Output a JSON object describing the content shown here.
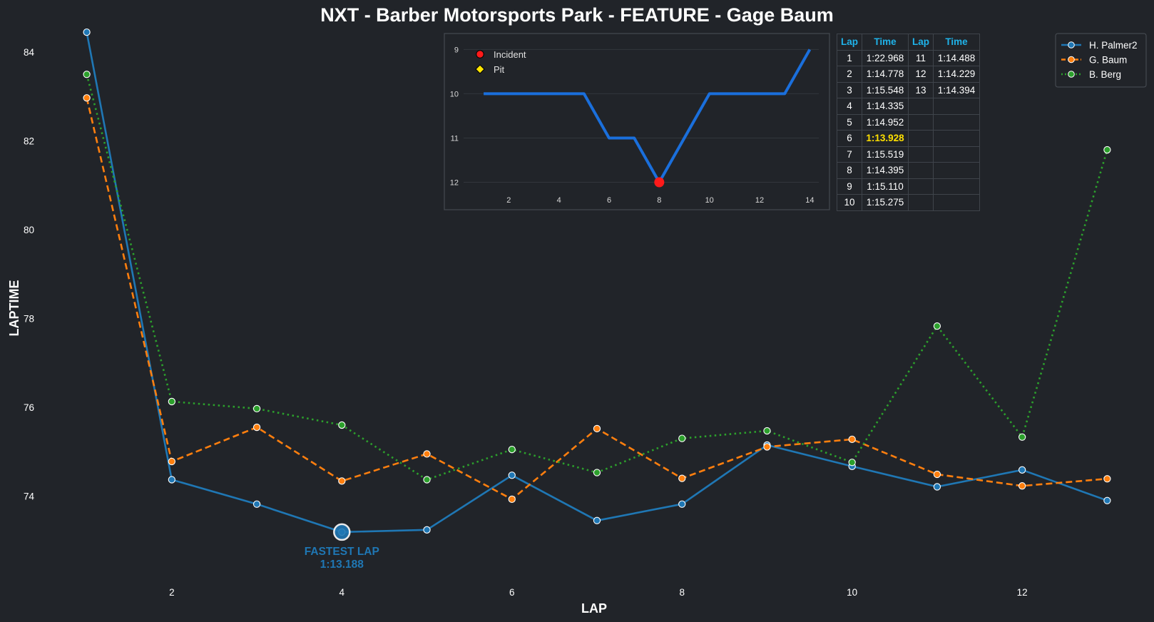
{
  "colors": {
    "background": "#212429",
    "text": "#ffffff",
    "palmer": "#1f77b4",
    "baum": "#ff7f0e",
    "berg": "#2ca02c",
    "position_line": "#1a6fdc",
    "incident": "#ff1a1a",
    "pit": "#ffe600",
    "table_header": "#1fb3ea",
    "table_best": "#ffe000"
  },
  "chart_data": [
    {
      "type": "line",
      "title": "NXT - Barber Motorsports Park - FEATURE - Gage Baum",
      "xlabel": "LAP",
      "ylabel": "LAPTIME",
      "x": [
        1,
        2,
        3,
        4,
        5,
        6,
        7,
        8,
        9,
        10,
        11,
        12,
        13
      ],
      "xticks": [
        "2",
        "4",
        "6",
        "8",
        "10",
        "12"
      ],
      "xtick_values": [
        2,
        4,
        6,
        8,
        10,
        12
      ],
      "yticks": [
        "74",
        "76",
        "78",
        "80",
        "82",
        "84"
      ],
      "ytick_values": [
        74,
        76,
        78,
        80,
        82,
        84
      ],
      "xlim": [
        0.5,
        13.5
      ],
      "ylim": [
        72.0,
        84.5
      ],
      "grid": false,
      "legend_position": "top-right",
      "series": [
        {
          "name": "H. Palmer2",
          "style": "solid",
          "color": "#1f77b4",
          "values": [
            84.45,
            74.37,
            73.82,
            73.19,
            73.24,
            74.47,
            73.45,
            73.82,
            75.15,
            74.67,
            74.21,
            74.59,
            73.9
          ]
        },
        {
          "name": "G. Baum",
          "style": "dashed",
          "color": "#ff7f0e",
          "values": [
            82.97,
            74.78,
            75.55,
            74.34,
            74.95,
            73.93,
            75.52,
            74.4,
            75.11,
            75.28,
            74.49,
            74.23,
            74.39
          ]
        },
        {
          "name": "B. Berg",
          "style": "dotted",
          "color": "#2ca02c",
          "values": [
            83.5,
            76.13,
            75.97,
            75.6,
            74.37,
            75.05,
            74.53,
            75.3,
            75.47,
            74.76,
            77.83,
            75.33,
            81.8
          ]
        }
      ],
      "annotations": [
        {
          "label": "FASTEST LAP",
          "value_text": "1:13.188",
          "series": "H. Palmer2",
          "x": 4,
          "y": 73.19
        }
      ]
    },
    {
      "type": "line",
      "title": "",
      "x": [
        1,
        2,
        3,
        4,
        5,
        6,
        7,
        8,
        9,
        10,
        11,
        12,
        13,
        14
      ],
      "values": [
        10,
        10,
        10,
        10,
        10,
        11,
        11,
        12,
        11,
        10,
        10,
        10,
        10,
        9
      ],
      "xticks": [
        "2",
        "4",
        "6",
        "8",
        "10",
        "12",
        "14"
      ],
      "xtick_values": [
        2,
        4,
        6,
        8,
        10,
        12,
        14
      ],
      "yticks": [
        "9",
        "10",
        "11",
        "12"
      ],
      "ytick_values": [
        9,
        10,
        11,
        12
      ],
      "xlim": [
        0.2,
        14.7
      ],
      "ylim": [
        12.25,
        8.8
      ],
      "y_inverted": true,
      "grid": true,
      "legend_position": "top-left",
      "legend": [
        {
          "label": "Incident",
          "marker": "circle",
          "color": "#ff1a1a"
        },
        {
          "label": "Pit",
          "marker": "diamond",
          "color": "#ffe600"
        }
      ],
      "incidents": [
        {
          "x": 8,
          "y": 12
        }
      ],
      "pits": []
    },
    {
      "type": "table",
      "headers": [
        "Lap",
        "Time",
        "Lap",
        "Time"
      ],
      "best_time": "1:13.928",
      "rows": [
        [
          "1",
          "1:22.968",
          "11",
          "1:14.488"
        ],
        [
          "2",
          "1:14.778",
          "12",
          "1:14.229"
        ],
        [
          "3",
          "1:15.548",
          "13",
          "1:14.394"
        ],
        [
          "4",
          "1:14.335",
          "",
          ""
        ],
        [
          "5",
          "1:14.952",
          "",
          ""
        ],
        [
          "6",
          "1:13.928",
          "",
          ""
        ],
        [
          "7",
          "1:15.519",
          "",
          ""
        ],
        [
          "8",
          "1:14.395",
          "",
          ""
        ],
        [
          "9",
          "1:15.110",
          "",
          ""
        ],
        [
          "10",
          "1:15.275",
          "",
          ""
        ]
      ]
    }
  ]
}
